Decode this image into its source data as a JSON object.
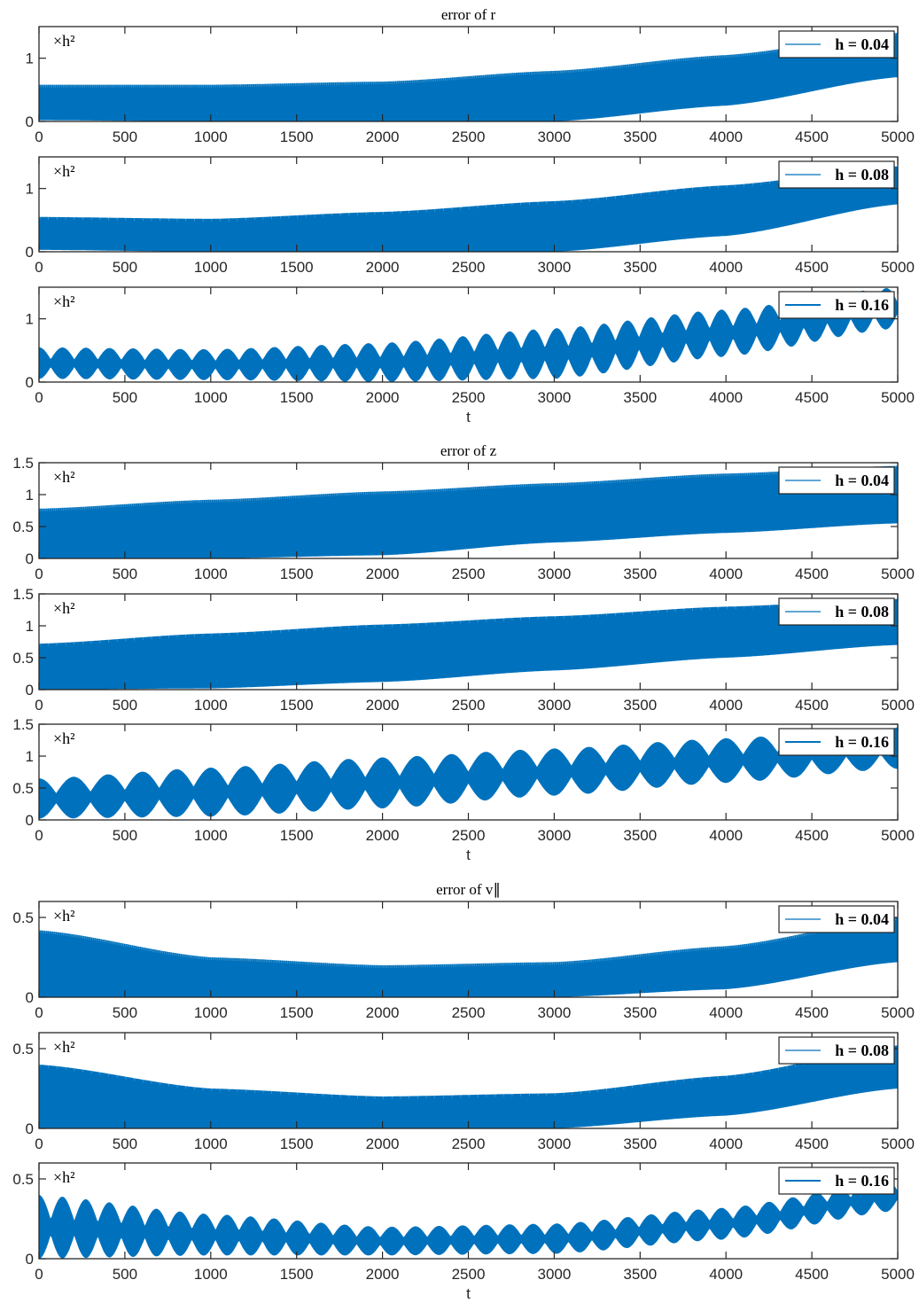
{
  "chart_data": [
    {
      "type": "area",
      "title": "error of r",
      "xlabel": "",
      "ylabel": "",
      "scale_label": "×h²",
      "legend": "h = 0.04",
      "xlim": [
        0,
        5000
      ],
      "ylim": [
        0,
        1.5
      ],
      "xticks": [
        0,
        500,
        1000,
        1500,
        2000,
        2500,
        3000,
        3500,
        4000,
        4500,
        5000
      ],
      "yticks": [
        0,
        1
      ],
      "color": "#0072BD",
      "envelope": {
        "t": [
          0,
          1000,
          2000,
          3000,
          4000,
          5000
        ],
        "upper": [
          0.58,
          0.58,
          0.63,
          0.8,
          1.05,
          1.4
        ],
        "lower": [
          0.02,
          0.0,
          0.0,
          0.0,
          0.25,
          0.7
        ]
      },
      "osc_period": 6
    },
    {
      "type": "area",
      "title": "",
      "xlabel": "",
      "ylabel": "",
      "scale_label": "×h²",
      "legend": "h = 0.08",
      "xlim": [
        0,
        5000
      ],
      "ylim": [
        0,
        1.5
      ],
      "xticks": [
        0,
        500,
        1000,
        1500,
        2000,
        2500,
        3000,
        3500,
        4000,
        4500,
        5000
      ],
      "yticks": [
        0,
        1
      ],
      "color": "#0072BD",
      "envelope": {
        "t": [
          0,
          1000,
          2000,
          3000,
          4000,
          5000
        ],
        "upper": [
          0.55,
          0.52,
          0.63,
          0.8,
          1.05,
          1.35
        ],
        "lower": [
          0.03,
          0.0,
          0.0,
          0.0,
          0.25,
          0.75
        ]
      },
      "osc_period": 50
    },
    {
      "type": "area",
      "title": "",
      "xlabel": "t",
      "ylabel": "",
      "scale_label": "×h²",
      "legend": "h = 0.16",
      "xlim": [
        0,
        5000
      ],
      "ylim": [
        0,
        1.5
      ],
      "xticks": [
        0,
        500,
        1000,
        1500,
        2000,
        2500,
        3000,
        3500,
        4000,
        4500,
        5000
      ],
      "yticks": [
        0,
        1
      ],
      "color": "#0072BD",
      "envelope": {
        "t": [
          0,
          1000,
          2000,
          3000,
          4000,
          5000
        ],
        "upper": [
          0.55,
          0.52,
          0.62,
          0.85,
          1.15,
          1.5
        ],
        "lower": [
          0.05,
          0.03,
          0.0,
          0.05,
          0.4,
          0.85
        ]
      },
      "beat_period": 137
    },
    {
      "type": "area",
      "title": "error of z",
      "xlabel": "",
      "ylabel": "",
      "scale_label": "×h²",
      "legend": "h = 0.04",
      "xlim": [
        0,
        5000
      ],
      "ylim": [
        0,
        1.5
      ],
      "xticks": [
        0,
        500,
        1000,
        1500,
        2000,
        2500,
        3000,
        3500,
        4000,
        4500,
        5000
      ],
      "yticks": [
        0,
        0.5,
        1,
        1.5
      ],
      "color": "#0072BD",
      "envelope": {
        "t": [
          0,
          1000,
          2000,
          3000,
          4000,
          5000
        ],
        "upper": [
          0.78,
          0.92,
          1.05,
          1.18,
          1.33,
          1.45
        ],
        "lower": [
          0.0,
          0.0,
          0.05,
          0.25,
          0.4,
          0.55
        ]
      },
      "osc_period": 6
    },
    {
      "type": "area",
      "title": "",
      "xlabel": "",
      "ylabel": "",
      "scale_label": "×h²",
      "legend": "h = 0.08",
      "xlim": [
        0,
        5000
      ],
      "ylim": [
        0,
        1.5
      ],
      "xticks": [
        0,
        500,
        1000,
        1500,
        2000,
        2500,
        3000,
        3500,
        4000,
        4500,
        5000
      ],
      "yticks": [
        0,
        0.5,
        1,
        1.5
      ],
      "color": "#0072BD",
      "envelope": {
        "t": [
          0,
          1000,
          2000,
          3000,
          4000,
          5000
        ],
        "upper": [
          0.72,
          0.88,
          1.02,
          1.15,
          1.3,
          1.42
        ],
        "lower": [
          0.0,
          0.02,
          0.12,
          0.3,
          0.5,
          0.7
        ]
      },
      "osc_period": 50
    },
    {
      "type": "area",
      "title": "",
      "xlabel": "t",
      "ylabel": "",
      "scale_label": "×h²",
      "legend": "h = 0.16",
      "xlim": [
        0,
        5000
      ],
      "ylim": [
        0,
        1.5
      ],
      "xticks": [
        0,
        500,
        1000,
        1500,
        2000,
        2500,
        3000,
        3500,
        4000,
        4500,
        5000
      ],
      "yticks": [
        0,
        0.5,
        1,
        1.5
      ],
      "color": "#0072BD",
      "envelope": {
        "t": [
          0,
          1000,
          2000,
          3000,
          4000,
          5000
        ],
        "upper": [
          0.65,
          0.82,
          0.98,
          1.12,
          1.28,
          1.45
        ],
        "lower": [
          0.02,
          0.05,
          0.18,
          0.38,
          0.58,
          0.8
        ]
      },
      "beat_period": 200
    },
    {
      "type": "area",
      "title": "error of v∥",
      "xlabel": "",
      "ylabel": "",
      "scale_label": "×h²",
      "legend": "h = 0.04",
      "xlim": [
        0,
        5000
      ],
      "ylim": [
        0,
        0.6
      ],
      "xticks": [
        0,
        500,
        1000,
        1500,
        2000,
        2500,
        3000,
        3500,
        4000,
        4500,
        5000
      ],
      "yticks": [
        0,
        0.5
      ],
      "color": "#0072BD",
      "envelope": {
        "t": [
          0,
          1000,
          2000,
          3000,
          4000,
          5000
        ],
        "upper": [
          0.42,
          0.25,
          0.2,
          0.22,
          0.32,
          0.5
        ],
        "lower": [
          0.0,
          0.0,
          0.0,
          0.0,
          0.05,
          0.22
        ]
      },
      "osc_period": 6
    },
    {
      "type": "area",
      "title": "",
      "xlabel": "",
      "ylabel": "",
      "scale_label": "×h²",
      "legend": "h = 0.08",
      "xlim": [
        0,
        5000
      ],
      "ylim": [
        0,
        0.6
      ],
      "xticks": [
        0,
        500,
        1000,
        1500,
        2000,
        2500,
        3000,
        3500,
        4000,
        4500,
        5000
      ],
      "yticks": [
        0,
        0.5
      ],
      "color": "#0072BD",
      "envelope": {
        "t": [
          0,
          1000,
          2000,
          3000,
          4000,
          5000
        ],
        "upper": [
          0.4,
          0.25,
          0.2,
          0.22,
          0.33,
          0.52
        ],
        "lower": [
          0.0,
          0.0,
          0.0,
          0.0,
          0.08,
          0.25
        ]
      },
      "osc_period": 50
    },
    {
      "type": "area",
      "title": "",
      "xlabel": "t",
      "ylabel": "",
      "scale_label": "×h²",
      "legend": "h = 0.16",
      "xlim": [
        0,
        5000
      ],
      "ylim": [
        0,
        0.6
      ],
      "xticks": [
        0,
        500,
        1000,
        1500,
        2000,
        2500,
        3000,
        3500,
        4000,
        4500,
        5000
      ],
      "yticks": [
        0,
        0.5
      ],
      "color": "#0072BD",
      "envelope": {
        "t": [
          0,
          1000,
          2000,
          3000,
          4000,
          5000
        ],
        "upper": [
          0.4,
          0.28,
          0.2,
          0.22,
          0.32,
          0.5
        ],
        "lower": [
          0.0,
          0.02,
          0.02,
          0.03,
          0.12,
          0.3
        ]
      },
      "beat_period": 137
    }
  ]
}
